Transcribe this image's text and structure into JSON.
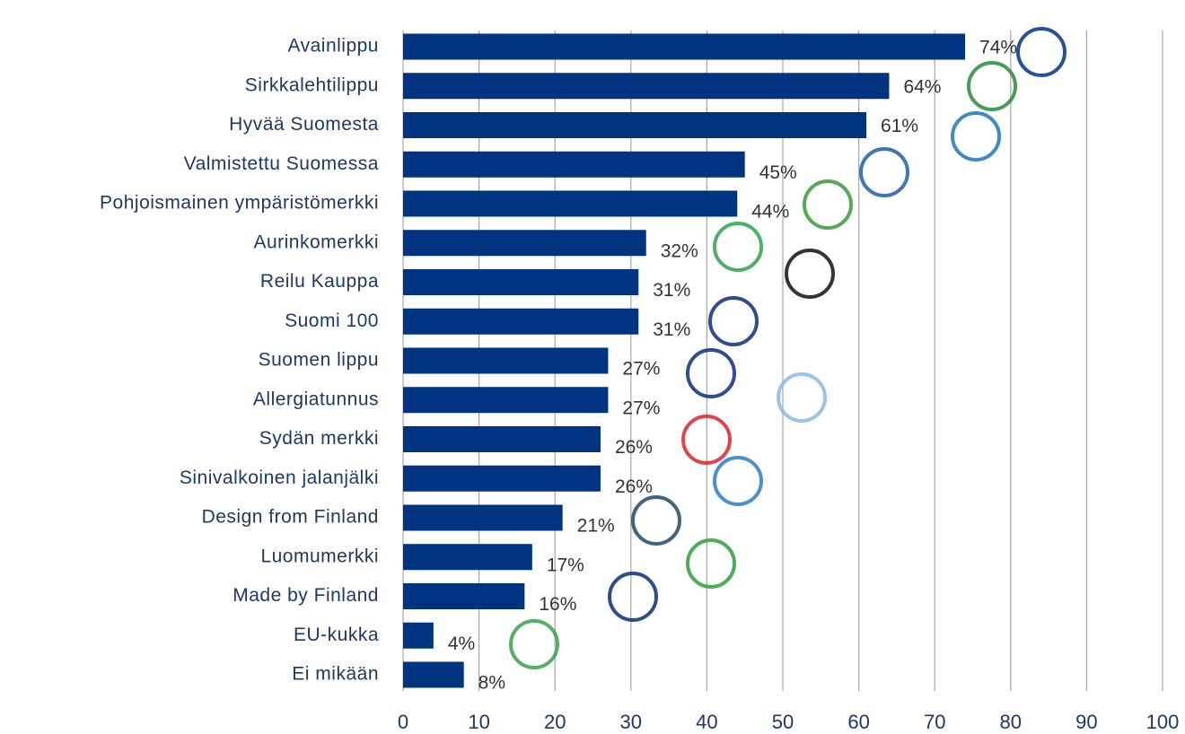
{
  "chart_data": {
    "type": "bar",
    "orientation": "horizontal",
    "categories": [
      "Avainlippu",
      "Sirkkalehtilippu",
      "Hyvää Suomesta",
      "Valmistettu Suomessa",
      "Pohjoismainen ympäristömerkki",
      "Aurinkomerkki",
      "Reilu Kauppa",
      "Suomi 100",
      "Suomen lippu",
      "Allergiatunnus",
      "Sydän merkki",
      "Sinivalkoinen jalanjälki",
      "Design from Finland",
      "Luomumerkki",
      "Made by Finland",
      "EU-kukka",
      "Ei mikään"
    ],
    "values": [
      74,
      64,
      61,
      45,
      44,
      32,
      31,
      31,
      27,
      27,
      26,
      26,
      21,
      17,
      16,
      4,
      8
    ],
    "value_labels": [
      "74%",
      "64%",
      "61%",
      "45%",
      "44%",
      "32%",
      "31%",
      "31%",
      "27%",
      "27%",
      "26%",
      "26%",
      "21%",
      "17%",
      "16%",
      "4%",
      "8%"
    ],
    "color": "#003380",
    "xlim": [
      0,
      100
    ],
    "xticks": [
      0,
      10,
      20,
      30,
      40,
      50,
      60,
      70,
      80,
      90,
      100
    ],
    "grid": true
  }
}
